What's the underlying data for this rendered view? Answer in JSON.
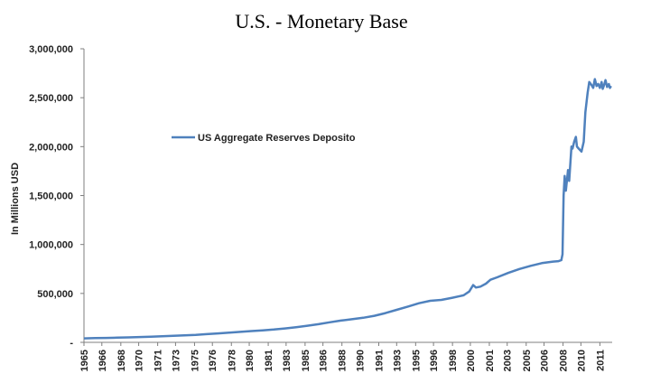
{
  "chart_data": {
    "type": "line",
    "title": "U.S. - Monetary Base",
    "xlabel": "",
    "ylabel": "In Millions USD",
    "x_range": [
      1965,
      2012.3
    ],
    "ylim": [
      0,
      3000000
    ],
    "y_ticks": [
      {
        "value": 0,
        "label": "-"
      },
      {
        "value": 500000,
        "label": "500,000"
      },
      {
        "value": 1000000,
        "label": "1,000,000"
      },
      {
        "value": 1500000,
        "label": "1,500,000"
      },
      {
        "value": 2000000,
        "label": "2,000,000"
      },
      {
        "value": 2500000,
        "label": "2,500,000"
      },
      {
        "value": 3000000,
        "label": "3,000,000"
      }
    ],
    "x_ticks": [
      {
        "value": 1965,
        "label": "1965"
      },
      {
        "value": 1966.6,
        "label": "1966"
      },
      {
        "value": 1968.3,
        "label": "1968"
      },
      {
        "value": 1969.9,
        "label": "1970"
      },
      {
        "value": 1971.6,
        "label": "1971"
      },
      {
        "value": 1973.2,
        "label": "1973"
      },
      {
        "value": 1974.9,
        "label": "1975"
      },
      {
        "value": 1976.5,
        "label": "1976"
      },
      {
        "value": 1978.2,
        "label": "1978"
      },
      {
        "value": 1979.8,
        "label": "1980"
      },
      {
        "value": 1981.5,
        "label": "1981"
      },
      {
        "value": 1983.1,
        "label": "1983"
      },
      {
        "value": 1984.8,
        "label": "1985"
      },
      {
        "value": 1986.4,
        "label": "1986"
      },
      {
        "value": 1988.1,
        "label": "1988"
      },
      {
        "value": 1989.7,
        "label": "1990"
      },
      {
        "value": 1991.4,
        "label": "1991"
      },
      {
        "value": 1993.0,
        "label": "1993"
      },
      {
        "value": 1994.7,
        "label": "1995"
      },
      {
        "value": 1996.3,
        "label": "1996"
      },
      {
        "value": 1998.0,
        "label": "1998"
      },
      {
        "value": 1999.6,
        "label": "2000"
      },
      {
        "value": 2001.3,
        "label": "2001"
      },
      {
        "value": 2002.9,
        "label": "2003"
      },
      {
        "value": 2004.6,
        "label": "2005"
      },
      {
        "value": 2006.2,
        "label": "2006"
      },
      {
        "value": 2007.9,
        "label": "2008"
      },
      {
        "value": 2009.5,
        "label": "2010"
      },
      {
        "value": 2011.2,
        "label": "2011"
      }
    ],
    "grid": false,
    "legend_position": "upper-left",
    "series": [
      {
        "name": "US Aggregate Reserves Deposito",
        "color": "#4F81BD",
        "points": [
          [
            1965,
            41000
          ],
          [
            1966,
            43000
          ],
          [
            1967,
            45000
          ],
          [
            1968,
            48000
          ],
          [
            1969,
            51000
          ],
          [
            1970,
            54000
          ],
          [
            1971,
            58000
          ],
          [
            1972,
            63000
          ],
          [
            1973,
            67000
          ],
          [
            1974,
            72000
          ],
          [
            1975,
            77000
          ],
          [
            1976,
            84000
          ],
          [
            1977,
            91000
          ],
          [
            1978,
            99000
          ],
          [
            1979,
            107000
          ],
          [
            1980,
            115000
          ],
          [
            1981,
            123000
          ],
          [
            1982,
            131000
          ],
          [
            1983,
            142000
          ],
          [
            1984,
            155000
          ],
          [
            1985,
            170000
          ],
          [
            1986,
            186000
          ],
          [
            1987,
            205000
          ],
          [
            1988,
            222000
          ],
          [
            1989,
            236000
          ],
          [
            1990,
            251000
          ],
          [
            1991,
            271000
          ],
          [
            1992,
            299000
          ],
          [
            1993,
            332000
          ],
          [
            1994,
            366000
          ],
          [
            1995,
            400000
          ],
          [
            1996,
            425000
          ],
          [
            1997,
            434000
          ],
          [
            1998,
            456000
          ],
          [
            1999,
            481000
          ],
          [
            1999.5,
            520000
          ],
          [
            1999.85,
            585000
          ],
          [
            2000.1,
            560000
          ],
          [
            2000.5,
            570000
          ],
          [
            2001,
            600000
          ],
          [
            2001.4,
            640000
          ],
          [
            2002,
            665000
          ],
          [
            2003,
            710000
          ],
          [
            2004,
            750000
          ],
          [
            2005,
            782000
          ],
          [
            2006,
            810000
          ],
          [
            2007,
            825000
          ],
          [
            2007.5,
            830000
          ],
          [
            2007.75,
            840000
          ],
          [
            2007.85,
            900000
          ],
          [
            2007.95,
            1500000
          ],
          [
            2008.05,
            1700000
          ],
          [
            2008.15,
            1550000
          ],
          [
            2008.35,
            1760000
          ],
          [
            2008.45,
            1650000
          ],
          [
            2008.65,
            2000000
          ],
          [
            2008.75,
            1980000
          ],
          [
            2008.9,
            2050000
          ],
          [
            2009.05,
            2100000
          ],
          [
            2009.15,
            2000000
          ],
          [
            2009.3,
            1980000
          ],
          [
            2009.55,
            1950000
          ],
          [
            2009.75,
            2050000
          ],
          [
            2009.9,
            2350000
          ],
          [
            2010.1,
            2550000
          ],
          [
            2010.25,
            2660000
          ],
          [
            2010.45,
            2630000
          ],
          [
            2010.6,
            2600000
          ],
          [
            2010.75,
            2690000
          ],
          [
            2010.9,
            2620000
          ],
          [
            2011.05,
            2640000
          ],
          [
            2011.2,
            2600000
          ],
          [
            2011.35,
            2660000
          ],
          [
            2011.45,
            2590000
          ],
          [
            2011.55,
            2620000
          ],
          [
            2011.7,
            2680000
          ],
          [
            2011.85,
            2610000
          ],
          [
            2012.0,
            2640000
          ],
          [
            2012.1,
            2600000
          ],
          [
            2012.2,
            2620000
          ]
        ]
      }
    ]
  }
}
